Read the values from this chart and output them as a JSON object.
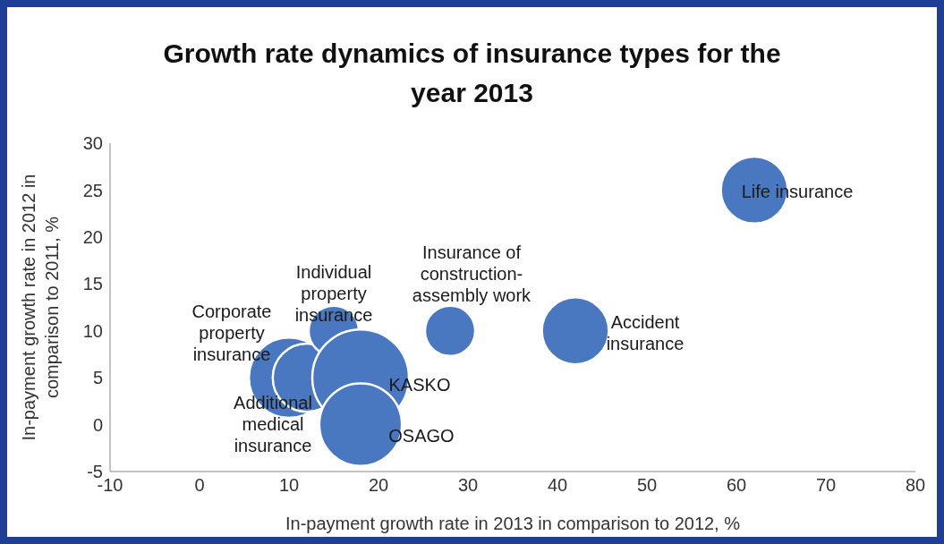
{
  "chart_data": {
    "type": "bubble",
    "title": "Growth rate dynamics of insurance types for the year 2013",
    "xlabel": "In-payment growth rate in 2013 in comparison to 2012, %",
    "ylabel": "In-payment growth rate in 2012 in comparison to 2011, %",
    "x": [
      10,
      12,
      15,
      18,
      18,
      28,
      42,
      62
    ],
    "values": [
      5,
      5,
      10,
      5,
      0,
      10,
      10,
      25
    ],
    "sizes": [
      0.69,
      0.5,
      0.27,
      1,
      0.73,
      0.27,
      0.48,
      0.48
    ],
    "color": "#4a78c0",
    "xlim": [
      -10,
      80
    ],
    "xticks": [
      -10,
      0,
      10,
      20,
      30,
      40,
      50,
      60,
      70,
      80
    ],
    "ylim": [
      -5,
      30
    ],
    "yticks": [
      -5,
      0,
      5,
      10,
      15,
      20,
      25,
      30
    ],
    "grid": false,
    "annotations": [
      {
        "text": "Corporate property insurance",
        "x": 10,
        "y": 5
      },
      {
        "text": "Additional medical insurance",
        "x": 12,
        "y": 5
      },
      {
        "text": "Individual property insurance",
        "x": 15,
        "y": 10
      },
      {
        "text": "KASKO",
        "x": 18,
        "y": 5
      },
      {
        "text": "OSAGO",
        "x": 18,
        "y": 0
      },
      {
        "text": "Insurance of construction-assembly work",
        "x": 28,
        "y": 10
      },
      {
        "text": "Accident insurance",
        "x": 42,
        "y": 10
      },
      {
        "text": "Life insurance",
        "x": 62,
        "y": 25
      }
    ]
  }
}
